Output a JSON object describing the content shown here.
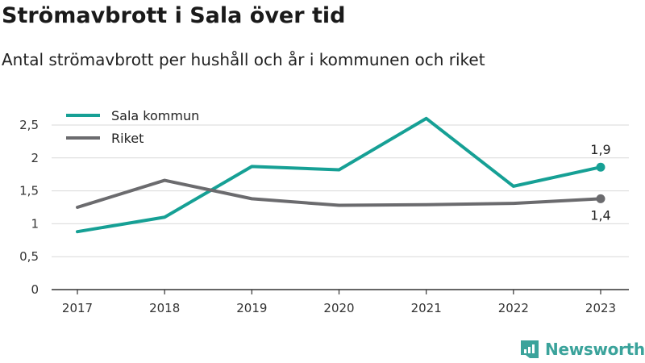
{
  "header": {
    "title": "Strömavbrott i Sala över tid",
    "subtitle": "Antal strömavbrott per hushåll och år i kommunen och riket"
  },
  "brand": {
    "name": "Newsworthy",
    "icon": "newsworthy-logo-icon",
    "color": "#3ba39b"
  },
  "colors": {
    "sala": "#16a095",
    "riket": "#6b6b6e",
    "grid": "#d9d9d9",
    "axis": "#333333"
  },
  "chart_data": {
    "type": "line",
    "categories": [
      "2017",
      "2018",
      "2019",
      "2020",
      "2021",
      "2022",
      "2023"
    ],
    "series": [
      {
        "name": "Sala kommun",
        "values": [
          0.88,
          1.1,
          1.87,
          1.82,
          2.6,
          1.57,
          1.86
        ],
        "end_label": "1,9"
      },
      {
        "name": "Riket",
        "values": [
          1.25,
          1.66,
          1.38,
          1.28,
          1.29,
          1.31,
          1.38
        ],
        "end_label": "1,4"
      }
    ],
    "ylim": [
      0,
      2.5
    ],
    "yticks": [
      {
        "value": 0,
        "label": "0"
      },
      {
        "value": 0.5,
        "label": "0,5"
      },
      {
        "value": 1,
        "label": "1"
      },
      {
        "value": 1.5,
        "label": "1,5"
      },
      {
        "value": 2,
        "label": "2"
      },
      {
        "value": 2.5,
        "label": "2,5"
      }
    ],
    "grid": true,
    "legend": "top-left",
    "xlabel": "",
    "ylabel": ""
  }
}
